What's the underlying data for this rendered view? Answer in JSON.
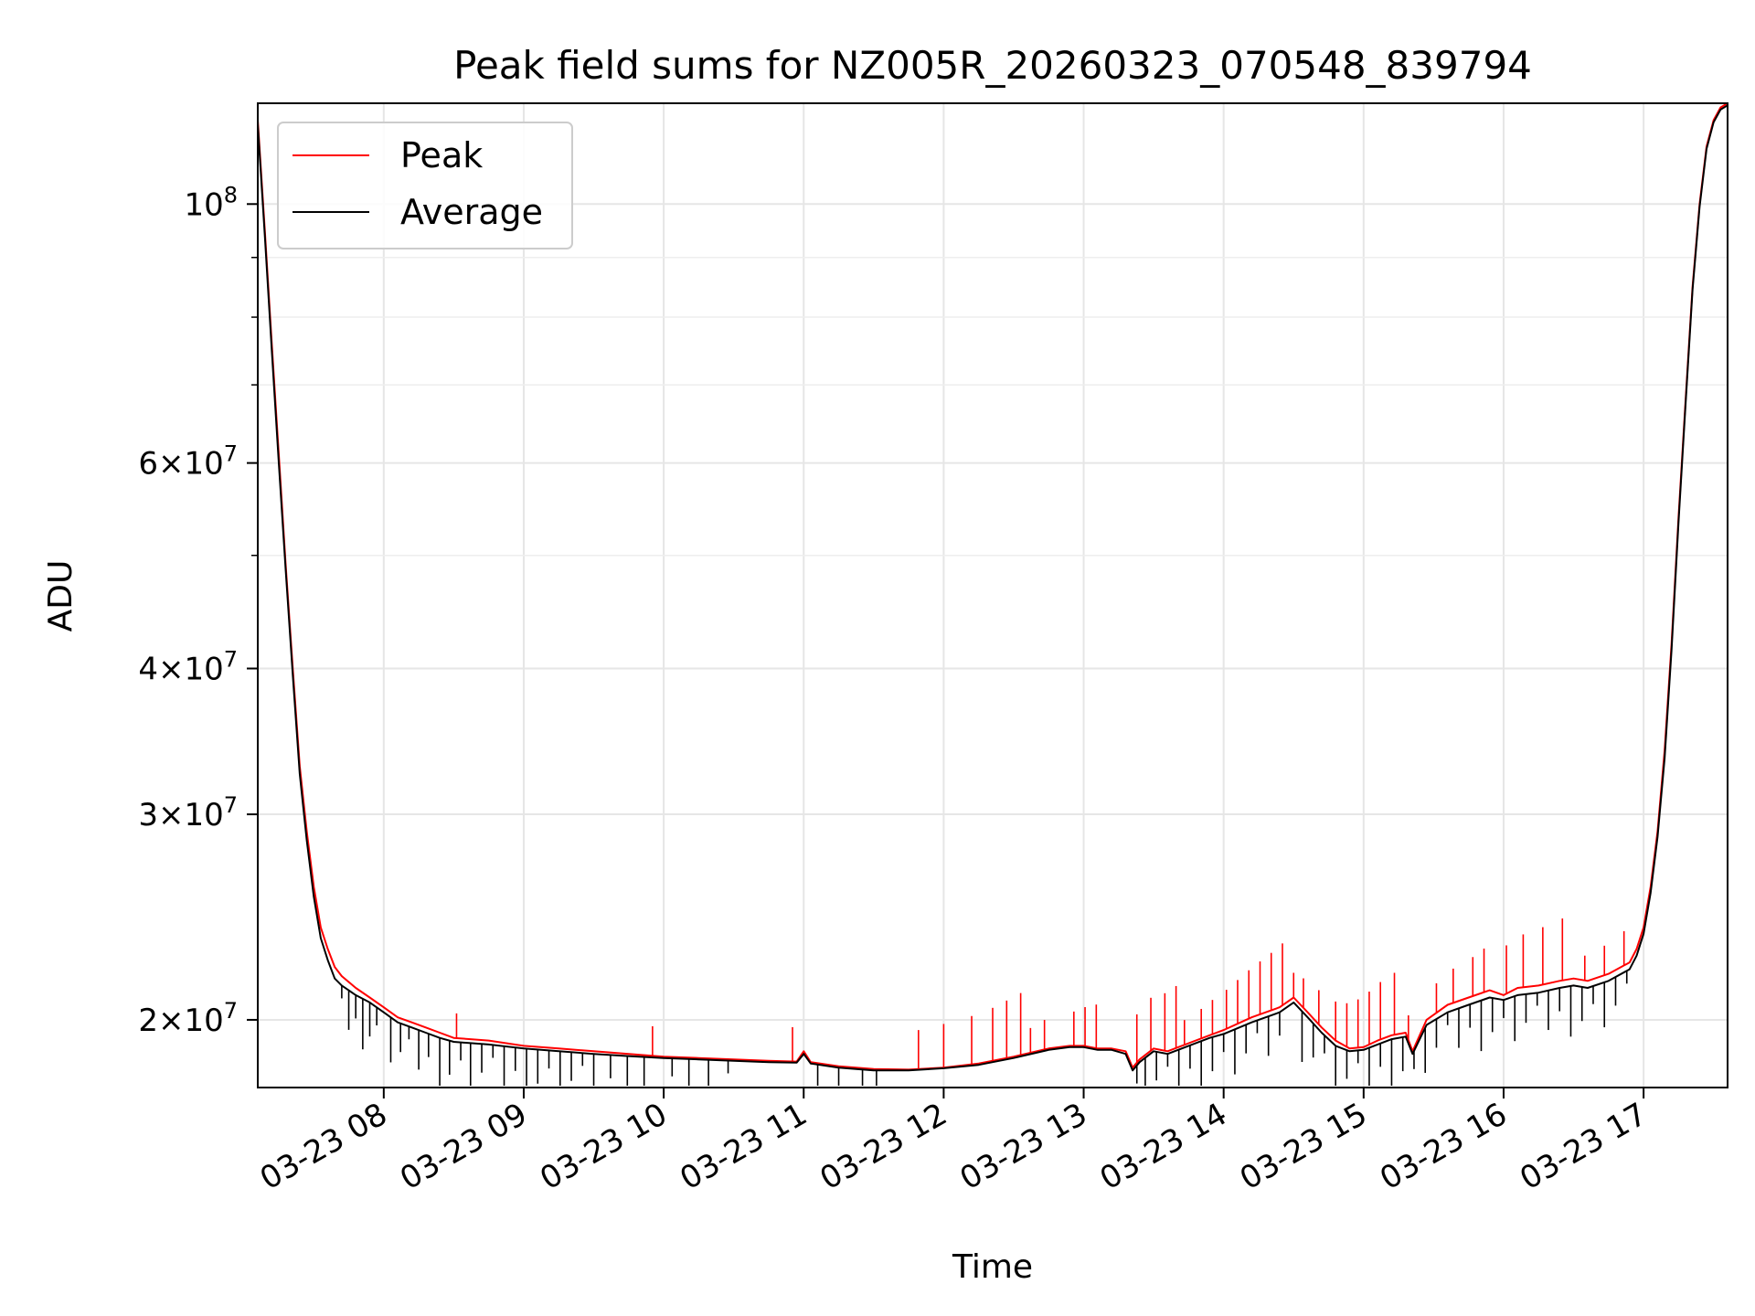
{
  "chart_data": {
    "type": "line",
    "title": "Peak field sums for NZ005R_20260323_070548_839794",
    "xlabel": "Time",
    "ylabel": "ADU",
    "yscale": "log",
    "xlim": [
      7.1,
      17.6
    ],
    "ylim": [
      17500000,
      122000000
    ],
    "grid": true,
    "legend_position": "upper-left",
    "x_ticks": [
      {
        "value": 8,
        "label": "03-23 08"
      },
      {
        "value": 9,
        "label": "03-23 09"
      },
      {
        "value": 10,
        "label": "03-23 10"
      },
      {
        "value": 11,
        "label": "03-23 11"
      },
      {
        "value": 12,
        "label": "03-23 12"
      },
      {
        "value": 13,
        "label": "03-23 13"
      },
      {
        "value": 14,
        "label": "03-23 14"
      },
      {
        "value": 15,
        "label": "03-23 15"
      },
      {
        "value": 16,
        "label": "03-23 16"
      },
      {
        "value": 17,
        "label": "03-23 17"
      }
    ],
    "y_ticks": [
      {
        "value": 20000000,
        "base": "2×10",
        "exp": "7"
      },
      {
        "value": 30000000,
        "base": "3×10",
        "exp": "7"
      },
      {
        "value": 40000000,
        "base": "4×10",
        "exp": "7"
      },
      {
        "value": 60000000,
        "base": "6×10",
        "exp": "7"
      },
      {
        "value": 100000000,
        "base": "10",
        "exp": "8"
      }
    ],
    "y_minor_ticks": [
      50000000,
      70000000,
      80000000,
      90000000
    ],
    "series": [
      {
        "name": "Peak",
        "color": "#ff0000",
        "x": [
          7.1,
          7.15,
          7.2,
          7.25,
          7.3,
          7.35,
          7.4,
          7.45,
          7.5,
          7.55,
          7.6,
          7.65,
          7.7,
          7.8,
          7.9,
          8.0,
          8.1,
          8.2,
          8.3,
          8.4,
          8.5,
          8.75,
          9.0,
          9.25,
          9.5,
          9.75,
          10.0,
          10.25,
          10.5,
          10.75,
          10.95,
          11.0,
          11.05,
          11.25,
          11.5,
          11.75,
          12.0,
          12.25,
          12.5,
          12.75,
          12.9,
          13.0,
          13.1,
          13.2,
          13.3,
          13.35,
          13.4,
          13.5,
          13.6,
          13.75,
          13.9,
          14.0,
          14.2,
          14.4,
          14.5,
          14.6,
          14.7,
          14.8,
          14.9,
          15.0,
          15.1,
          15.2,
          15.3,
          15.35,
          15.45,
          15.6,
          15.75,
          15.9,
          16.0,
          16.1,
          16.25,
          16.4,
          16.5,
          16.6,
          16.75,
          16.9,
          16.95,
          17.0,
          17.05,
          17.1,
          17.15,
          17.2,
          17.25,
          17.3,
          17.35,
          17.4,
          17.45,
          17.5,
          17.55,
          17.6
        ],
        "y": [
          118000000,
          95000000,
          76000000,
          61000000,
          49000000,
          40000000,
          33000000,
          29000000,
          26000000,
          24000000,
          23000000,
          22200000,
          21800000,
          21300000,
          20900000,
          20500000,
          20100000,
          19900000,
          19700000,
          19500000,
          19300000,
          19200000,
          19000000,
          18900000,
          18800000,
          18700000,
          18600000,
          18550000,
          18500000,
          18450000,
          18420000,
          18800000,
          18400000,
          18250000,
          18150000,
          18130000,
          18200000,
          18350000,
          18600000,
          18900000,
          19000000,
          19000000,
          18900000,
          18900000,
          18800000,
          18200000,
          18500000,
          18900000,
          18800000,
          19100000,
          19400000,
          19600000,
          20100000,
          20500000,
          20900000,
          20300000,
          19700000,
          19200000,
          18900000,
          18950000,
          19200000,
          19400000,
          19500000,
          18800000,
          20000000,
          20600000,
          20900000,
          21200000,
          21000000,
          21300000,
          21400000,
          21600000,
          21700000,
          21600000,
          21900000,
          22400000,
          23000000,
          24000000,
          26000000,
          29000000,
          34000000,
          42000000,
          54000000,
          68000000,
          85000000,
          100000000,
          112000000,
          118000000,
          121000000,
          122000000
        ]
      },
      {
        "name": "Average",
        "color": "#000000",
        "x": [
          7.1,
          7.15,
          7.2,
          7.25,
          7.3,
          7.35,
          7.4,
          7.45,
          7.5,
          7.55,
          7.6,
          7.65,
          7.7,
          7.8,
          7.9,
          8.0,
          8.1,
          8.2,
          8.3,
          8.4,
          8.5,
          8.75,
          9.0,
          9.25,
          9.5,
          9.75,
          10.0,
          10.25,
          10.5,
          10.75,
          10.95,
          11.0,
          11.05,
          11.25,
          11.5,
          11.75,
          12.0,
          12.25,
          12.5,
          12.75,
          12.9,
          13.0,
          13.1,
          13.2,
          13.3,
          13.35,
          13.4,
          13.5,
          13.6,
          13.75,
          13.9,
          14.0,
          14.2,
          14.4,
          14.5,
          14.6,
          14.7,
          14.8,
          14.9,
          15.0,
          15.1,
          15.2,
          15.3,
          15.35,
          15.45,
          15.6,
          15.75,
          15.9,
          16.0,
          16.1,
          16.25,
          16.4,
          16.5,
          16.6,
          16.75,
          16.9,
          16.95,
          17.0,
          17.05,
          17.1,
          17.15,
          17.2,
          17.25,
          17.3,
          17.35,
          17.4,
          17.45,
          17.5,
          17.55,
          17.6
        ],
        "y": [
          117000000,
          94000000,
          75000000,
          60000000,
          48500000,
          39500000,
          32500000,
          28500000,
          25500000,
          23500000,
          22500000,
          21700000,
          21400000,
          21000000,
          20700000,
          20300000,
          19900000,
          19700000,
          19500000,
          19300000,
          19150000,
          19050000,
          18900000,
          18800000,
          18700000,
          18620000,
          18550000,
          18500000,
          18450000,
          18400000,
          18380000,
          18700000,
          18350000,
          18200000,
          18100000,
          18100000,
          18180000,
          18300000,
          18550000,
          18850000,
          18950000,
          18950000,
          18850000,
          18850000,
          18700000,
          18100000,
          18400000,
          18800000,
          18700000,
          19000000,
          19300000,
          19450000,
          19900000,
          20300000,
          20700000,
          20100000,
          19500000,
          19000000,
          18800000,
          18850000,
          19050000,
          19250000,
          19350000,
          18700000,
          19800000,
          20300000,
          20600000,
          20900000,
          20800000,
          21000000,
          21100000,
          21300000,
          21400000,
          21300000,
          21600000,
          22100000,
          22700000,
          23700000,
          25700000,
          28700000,
          33500000,
          41500000,
          53500000,
          67500000,
          84500000,
          99500000,
          111500000,
          117500000,
          120500000,
          121500000
        ]
      }
    ],
    "spikes_peak_up": [
      8.52,
      9.92,
      10.92,
      11.82,
      12.0,
      12.2,
      12.35,
      12.45,
      12.55,
      12.62,
      12.72,
      12.93,
      13.01,
      13.09,
      13.38,
      13.48,
      13.58,
      13.66,
      13.72,
      13.84,
      13.92,
      14.02,
      14.1,
      14.18,
      14.26,
      14.34,
      14.42,
      14.5,
      14.57,
      14.68,
      14.8,
      14.88,
      14.96,
      15.04,
      15.12,
      15.22,
      15.32,
      15.52,
      15.64,
      15.78,
      15.86,
      16.02,
      16.14,
      16.28,
      16.42,
      16.58,
      16.72,
      16.86
    ],
    "spikes_avg_down": [
      7.7,
      7.75,
      7.8,
      7.85,
      7.9,
      7.95,
      8.05,
      8.12,
      8.18,
      8.25,
      8.32,
      8.4,
      8.47,
      8.55,
      8.62,
      8.7,
      8.78,
      8.86,
      8.94,
      9.02,
      9.1,
      9.18,
      9.26,
      9.34,
      9.42,
      9.5,
      9.62,
      9.74,
      9.86,
      10.06,
      10.18,
      10.32,
      10.46,
      11.1,
      11.25,
      11.42,
      11.52,
      13.38,
      13.44,
      13.52,
      13.6,
      13.68,
      13.76,
      13.84,
      13.92,
      14.0,
      14.08,
      14.16,
      14.24,
      14.32,
      14.4,
      14.56,
      14.64,
      14.72,
      14.8,
      14.88,
      14.96,
      15.04,
      15.12,
      15.2,
      15.28,
      15.36,
      15.44,
      15.52,
      15.6,
      15.68,
      15.76,
      15.84,
      15.92,
      16.0,
      16.08,
      16.16,
      16.24,
      16.32,
      16.4,
      16.48,
      16.56,
      16.64,
      16.72,
      16.8,
      16.88
    ]
  }
}
